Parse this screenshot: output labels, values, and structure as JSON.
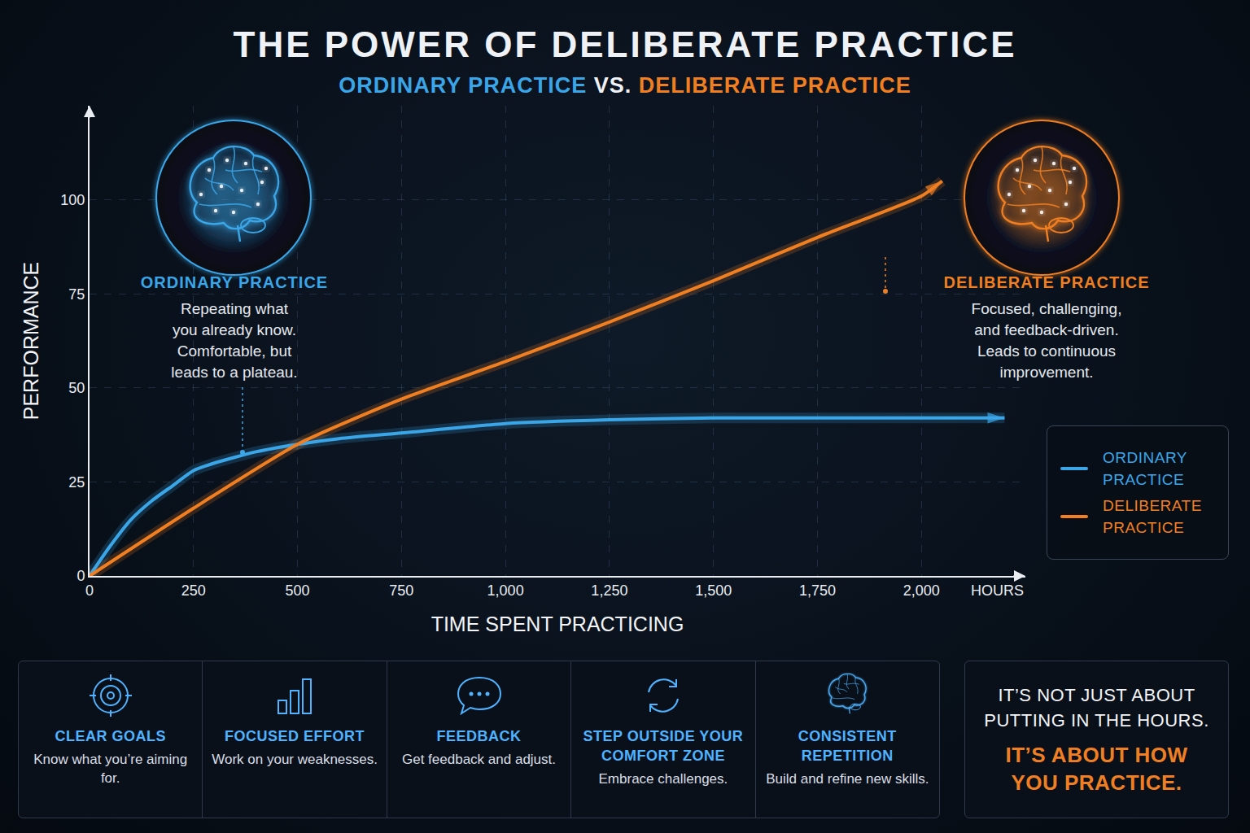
{
  "chart_data": {
    "type": "line",
    "title": "THE POWER OF DELIBERATE PRACTICE",
    "subtitle": "ORDINARY PRACTICE VS. DELIBERATE PRACTICE",
    "x_label": "TIME SPENT PRACTICING",
    "y_label": "PERFORMANCE",
    "x_unit_label": "HOURS",
    "xlim": [
      0,
      2250
    ],
    "ylim": [
      0,
      125
    ],
    "xticks": [
      0,
      250,
      500,
      750,
      {
        "value": 1000,
        "label": "1,000"
      },
      {
        "value": 1250,
        "label": "1,250"
      },
      {
        "value": 1500,
        "label": "1,500"
      },
      {
        "value": 1750,
        "label": "1,750"
      },
      {
        "value": 2000,
        "label": "2,000"
      }
    ],
    "yticks": [
      0,
      25,
      50,
      75,
      100
    ],
    "grid": true,
    "legend": "right",
    "series": [
      {
        "name": "ORDINARY PRACTICE",
        "color": "#3aa6e8",
        "marker": "arrow",
        "x": [
          0,
          50,
          100,
          150,
          200,
          250,
          300,
          400,
          500,
          600,
          750,
          1000,
          1250,
          1500,
          1750,
          2000,
          2200
        ],
        "values": [
          0,
          8,
          15,
          20,
          24,
          28,
          30,
          33,
          35,
          36.5,
          38,
          40.5,
          41.5,
          42,
          42,
          42,
          42
        ]
      },
      {
        "name": "DELIBERATE PRACTICE",
        "color": "#f07f22",
        "marker": "arrow",
        "x": [
          0,
          250,
          500,
          750,
          1000,
          1250,
          1500,
          1750,
          2000,
          2050
        ],
        "values": [
          0,
          18,
          35,
          47,
          57,
          67.5,
          78.5,
          90,
          101,
          105
        ]
      }
    ],
    "annotations": [
      {
        "heading": "ORDINARY PRACTICE",
        "lines": [
          "Repeating what",
          "you already know.",
          "Comfortable, but",
          "leads to a plateau."
        ]
      },
      {
        "heading": "DELIBERATE PRACTICE",
        "lines": [
          "Focused, challenging,",
          "and feedback-driven.",
          "Leads to continuous",
          "improvement."
        ]
      }
    ]
  },
  "principles": [
    {
      "title": "CLEAR GOALS",
      "text": "Know what you’re aiming for."
    },
    {
      "title": "FOCUSED EFFORT",
      "text": "Work on your weaknesses."
    },
    {
      "title": "FEEDBACK",
      "text": "Get feedback and adjust."
    },
    {
      "title": "STEP OUTSIDE YOUR COMFORT ZONE",
      "text": "Embrace challenges."
    },
    {
      "title": "CONSISTENT REPETITION",
      "text": "Build and refine new skills."
    }
  ],
  "closing": [
    "IT’S NOT JUST ABOUT PUTTING IN THE HOURS.",
    "IT’S ABOUT HOW YOU PRACTICE."
  ]
}
